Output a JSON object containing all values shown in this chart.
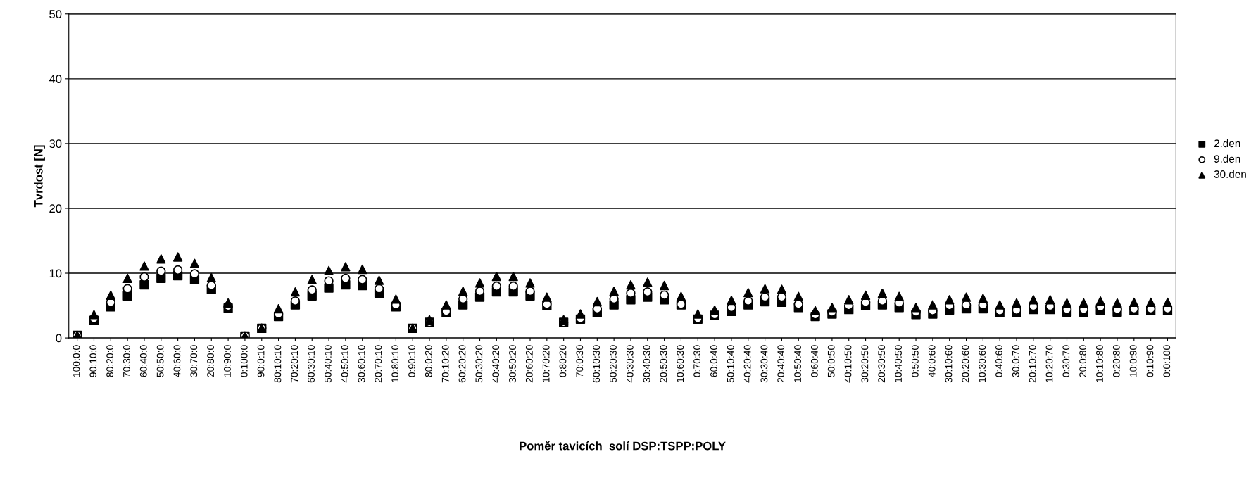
{
  "chart_data": {
    "type": "scatter",
    "xlabel": "Poměr tavicích  solí DSP:TSPP:POLY",
    "ylabel": "Tvrdost [N]",
    "categories": [
      "100:0:0",
      "90:10:0",
      "80:20:0",
      "70:30:0",
      "60:40:0",
      "50:50:0",
      "40:60:0",
      "30:70:0",
      "20:80:0",
      "10:90:0",
      "0:100:0",
      "90:0:10",
      "80:10:10",
      "70:20:10",
      "60:30:10",
      "50:40:10",
      "40:50:10",
      "30:60:10",
      "20:70:10",
      "10:80:10",
      "0:90:10",
      "80:0:20",
      "70:10:20",
      "60:20:20",
      "50:30:20",
      "40:40:20",
      "30:50:20",
      "20:60:20",
      "10:70:20",
      "0:80:20",
      "70:0:30",
      "60:10:30",
      "50:20:30",
      "40:30:30",
      "30:40:30",
      "20:50:30",
      "10:60:30",
      "0:70:30",
      "60:0:40",
      "50:10:40",
      "40:20:40",
      "30:30:40",
      "20:40:40",
      "10:50:40",
      "0:60:40",
      "50:0:50",
      "40:10:50",
      "30:20:50",
      "20:30:50",
      "10:40:50",
      "0:50:50",
      "40:0:60",
      "30:10:60",
      "20:20:60",
      "10:30:60",
      "0:40:60",
      "30:0:70",
      "20:10:70",
      "10:20:70",
      "0:30:70",
      "20:0:80",
      "10:10:80",
      "0:20:80",
      "10:0:90",
      "0:10:90",
      "0:0:100"
    ],
    "series": [
      {
        "name": "2.den",
        "color": "#000000",
        "marker": "square",
        "values": [
          0.4,
          2.7,
          4.8,
          6.5,
          8.2,
          9.2,
          9.6,
          9.0,
          7.5,
          4.6,
          0.3,
          1.5,
          3.3,
          5.1,
          6.5,
          7.7,
          8.2,
          8.1,
          6.9,
          4.8,
          1.5,
          2.4,
          3.9,
          5.1,
          6.3,
          7.1,
          7.1,
          6.5,
          5.0,
          2.4,
          2.9,
          3.9,
          5.1,
          5.9,
          6.3,
          5.9,
          5.1,
          2.9,
          3.5,
          4.1,
          5.1,
          5.6,
          5.5,
          4.7,
          3.3,
          3.7,
          4.4,
          5.0,
          5.1,
          4.7,
          3.6,
          3.7,
          4.3,
          4.5,
          4.5,
          3.9,
          4.0,
          4.4,
          4.4,
          4.0,
          4.0,
          4.3,
          4.0,
          4.2,
          4.2,
          4.2
        ]
      },
      {
        "name": "9.den",
        "color": "#000000",
        "marker": "circle",
        "values": [
          0.4,
          3.0,
          5.5,
          7.6,
          9.4,
          10.3,
          10.5,
          9.9,
          8.1,
          4.9,
          0.3,
          1.5,
          3.7,
          5.7,
          7.4,
          8.8,
          9.2,
          9.0,
          7.6,
          5.1,
          1.5,
          2.4,
          4.1,
          6.0,
          7.2,
          8.0,
          8.0,
          7.2,
          5.2,
          2.4,
          3.0,
          4.5,
          6.0,
          6.9,
          7.1,
          6.6,
          5.2,
          3.0,
          3.6,
          4.7,
          5.7,
          6.3,
          6.3,
          5.2,
          3.6,
          4.0,
          5.0,
          5.5,
          5.7,
          5.4,
          4.0,
          4.2,
          5.0,
          5.1,
          5.1,
          4.2,
          4.3,
          4.9,
          4.9,
          4.4,
          4.4,
          4.8,
          4.4,
          4.5,
          4.5,
          4.5
        ]
      },
      {
        "name": "30.den",
        "color": "#000000",
        "marker": "triangle",
        "values": [
          0.4,
          3.6,
          6.6,
          9.2,
          11.1,
          12.2,
          12.5,
          11.5,
          9.3,
          5.4,
          0.3,
          1.5,
          4.5,
          7.1,
          9.0,
          10.4,
          11.0,
          10.6,
          8.9,
          6.0,
          1.5,
          2.8,
          5.1,
          7.2,
          8.5,
          9.5,
          9.5,
          8.5,
          6.3,
          2.8,
          3.7,
          5.6,
          7.2,
          8.2,
          8.6,
          8.1,
          6.4,
          3.7,
          4.3,
          5.8,
          7.0,
          7.6,
          7.5,
          6.4,
          4.2,
          4.7,
          5.9,
          6.6,
          6.9,
          6.4,
          4.7,
          5.1,
          5.9,
          6.3,
          6.1,
          5.1,
          5.4,
          5.9,
          5.9,
          5.4,
          5.4,
          5.7,
          5.4,
          5.5,
          5.5,
          5.5
        ]
      }
    ],
    "ylim": [
      0,
      50
    ],
    "yticks": [
      0,
      10,
      20,
      30,
      40,
      50
    ],
    "grid": "y",
    "legend": "right"
  }
}
